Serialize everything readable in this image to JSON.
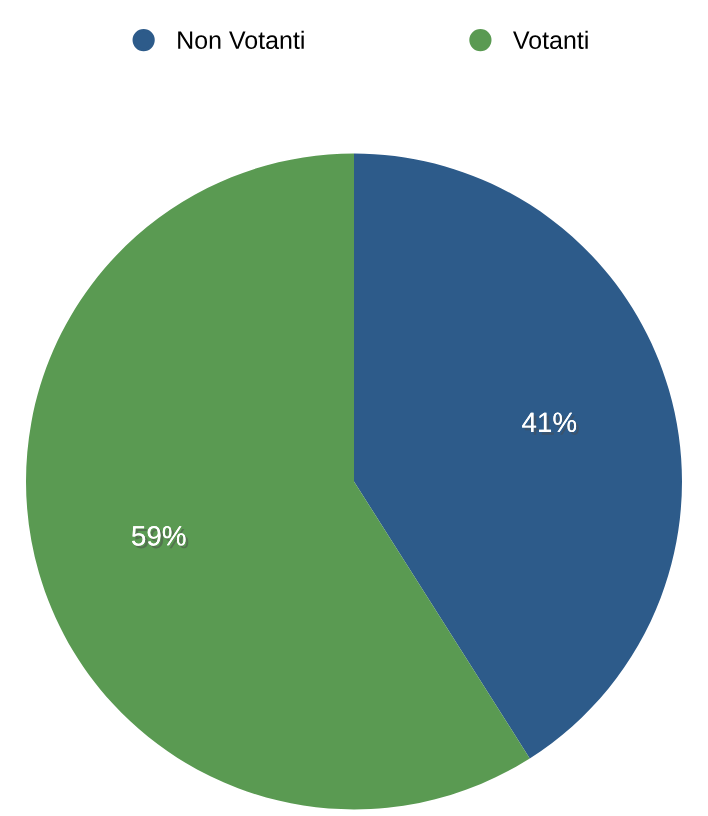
{
  "chart_data": {
    "type": "pie",
    "categories": [
      "Non Votanti",
      "Votanti"
    ],
    "values": [
      41,
      59
    ],
    "colors": [
      "#2d5b8a",
      "#5a9a52"
    ],
    "value_labels": [
      "41%",
      "59%"
    ],
    "legend": "top"
  }
}
